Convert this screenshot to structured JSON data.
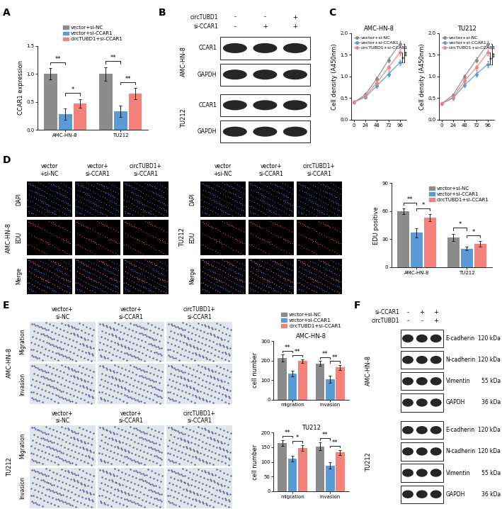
{
  "chart_data": [
    {
      "panel": "A",
      "type": "bar",
      "categories": [
        "AMC-HN-8",
        "TU212"
      ],
      "y_label": "CCAR1 expression",
      "ylim": [
        0,
        1.5
      ],
      "yticks": [
        {
          "value": 0,
          "label": "0.0"
        },
        0.5,
        1.0,
        1.5
      ],
      "legend": "upper center",
      "series": [
        {
          "name": "vector+si-NC",
          "color": "#8c8c8c",
          "values": [
            1.0,
            1.0
          ],
          "error": [
            0.1,
            0.12
          ]
        },
        {
          "name": "vector+si-CCAR1",
          "color": "#5b9bd5",
          "values": [
            0.28,
            0.33
          ],
          "error": [
            0.1,
            0.1
          ]
        },
        {
          "name": "circTUBD1+si-CCAR1",
          "color": "#f4817a",
          "values": [
            0.47,
            0.65
          ],
          "error": [
            0.08,
            0.1
          ]
        }
      ],
      "significance": [
        {
          "category": "AMC-HN-8",
          "between": [
            "vector+si-NC",
            "vector+si-CCAR1"
          ],
          "text": "**"
        },
        {
          "category": "AMC-HN-8",
          "between": [
            "vector+si-CCAR1",
            "circTUBD1+si-CCAR1"
          ],
          "text": "*"
        },
        {
          "category": "TU212",
          "between": [
            "vector+si-NC",
            "vector+si-CCAR1"
          ],
          "text": "**"
        },
        {
          "category": "TU212",
          "between": [
            "vector+si-CCAR1",
            "circTUBD1+si-CCAR1"
          ],
          "text": "**"
        }
      ]
    },
    {
      "panel": "C",
      "type": "line",
      "title": "AMC-HN-8",
      "y_label": "Cell density (A450nm)",
      "marker": "circle",
      "x": [
        0,
        24,
        48,
        72,
        96
      ],
      "xlim": [
        -5,
        110
      ],
      "xticks": [
        0,
        24,
        48,
        72,
        96
      ],
      "ylim": [
        0,
        2.0
      ],
      "yticks": [
        {
          "value": 0,
          "label": "0.0"
        },
        0.5,
        1.0,
        1.5,
        2.0
      ],
      "legend": "upper left",
      "series": [
        {
          "name": "vector+si-NC",
          "color": "#8c8c8c",
          "values": [
            0.4,
            0.58,
            0.95,
            1.38,
            1.75
          ],
          "error": [
            0.03,
            0.04,
            0.05,
            0.06,
            0.07
          ]
        },
        {
          "name": "vector+si-CCAR1",
          "color": "#5b9bd5",
          "values": [
            0.4,
            0.52,
            0.78,
            1.05,
            1.32
          ],
          "error": [
            0.03,
            0.04,
            0.05,
            0.06,
            0.07
          ]
        },
        {
          "name": "circTUBD1+si-CCAR1",
          "color": "#f4817a",
          "values": [
            0.4,
            0.55,
            0.85,
            1.2,
            1.55
          ],
          "error": [
            0.03,
            0.04,
            0.05,
            0.06,
            0.07
          ]
        }
      ],
      "significance": [
        {
          "between": [
            "vector+si-CCAR1",
            "circTUBD1+si-CCAR1"
          ],
          "text": "*"
        },
        {
          "between": [
            "vector+si-NC",
            "vector+si-CCAR1"
          ],
          "text": "**"
        }
      ]
    },
    {
      "type": "line",
      "title": "TU212",
      "y_label": "Cell density (A450nm)",
      "marker": "circle",
      "x": [
        0,
        24,
        48,
        72,
        96
      ],
      "xlim": [
        -5,
        110
      ],
      "xticks": [
        0,
        24,
        48,
        72,
        96
      ],
      "ylim": [
        0,
        2.0
      ],
      "yticks": [
        {
          "value": 0,
          "label": "0.0"
        },
        0.5,
        1.0,
        1.5,
        2.0
      ],
      "legend": "upper left",
      "series": [
        {
          "name": "vector+si-NC",
          "color": "#8c8c8c",
          "values": [
            0.37,
            0.57,
            1.0,
            1.38,
            1.75
          ],
          "error": [
            0.03,
            0.04,
            0.05,
            0.06,
            0.07
          ]
        },
        {
          "name": "vector+si-CCAR1",
          "color": "#5b9bd5",
          "values": [
            0.37,
            0.5,
            0.8,
            1.05,
            1.28
          ],
          "error": [
            0.03,
            0.04,
            0.05,
            0.06,
            0.07
          ]
        },
        {
          "name": "circTUBD1+si-CCAR1",
          "color": "#f4817a",
          "values": [
            0.37,
            0.52,
            0.9,
            1.2,
            1.55
          ],
          "error": [
            0.03,
            0.04,
            0.05,
            0.06,
            0.07
          ]
        }
      ],
      "significance": [
        {
          "between": [
            "vector+si-CCAR1",
            "circTUBD1+si-CCAR1"
          ],
          "text": "*"
        },
        {
          "between": [
            "vector+si-NC",
            "vector+si-CCAR1"
          ],
          "text": "**"
        }
      ]
    },
    {
      "panel": "D",
      "type": "bar",
      "categories": [
        "AMC-HN-8",
        "TU212"
      ],
      "y_label": "EDU positive",
      "ylim": [
        0,
        90
      ],
      "yticks": [
        0,
        30,
        60,
        90
      ],
      "legend": "upper right",
      "series": [
        {
          "name": "vector+si-NC",
          "color": "#8c8c8c",
          "values": [
            60,
            32
          ],
          "error": [
            3,
            4
          ]
        },
        {
          "name": "vector+si-CCAR1",
          "color": "#5b9bd5",
          "values": [
            37,
            20
          ],
          "error": [
            5,
            2
          ]
        },
        {
          "name": "circTUBD1+si-CCAR1",
          "color": "#f4817a",
          "values": [
            53,
            25
          ],
          "error": [
            4,
            3
          ]
        }
      ],
      "significance": [
        {
          "category": "AMC-HN-8",
          "between": [
            "vector+si-NC",
            "vector+si-CCAR1"
          ],
          "text": "**"
        },
        {
          "category": "AMC-HN-8",
          "between": [
            "vector+si-CCAR1",
            "circTUBD1+si-CCAR1"
          ],
          "text": "*"
        },
        {
          "category": "TU212",
          "between": [
            "vector+si-NC",
            "vector+si-CCAR1"
          ],
          "text": "*"
        },
        {
          "category": "TU212",
          "between": [
            "vector+si-CCAR1",
            "circTUBD1+si-CCAR1"
          ],
          "text": "*"
        }
      ]
    },
    {
      "panel": "E",
      "type": "bar",
      "title": "AMC-HN-8",
      "categories": [
        "migration",
        "invasion"
      ],
      "y_label": "cell number",
      "ylim": [
        0,
        300
      ],
      "yticks": [
        0,
        100,
        200,
        300
      ],
      "legend": "upper center",
      "series": [
        {
          "name": "vector+si-NC",
          "color": "#8c8c8c",
          "values": [
            212,
            185
          ],
          "error": [
            18,
            12
          ]
        },
        {
          "name": "vector+si-CCAR1",
          "color": "#5b9bd5",
          "values": [
            133,
            103
          ],
          "error": [
            15,
            18
          ]
        },
        {
          "name": "circTUBD1+si-CCAR1",
          "color": "#f4817a",
          "values": [
            197,
            165
          ],
          "error": [
            10,
            12
          ]
        }
      ],
      "significance": [
        {
          "category": "migration",
          "between": [
            "vector+si-NC",
            "vector+si-CCAR1"
          ],
          "text": "**"
        },
        {
          "category": "migration",
          "between": [
            "vector+si-CCAR1",
            "circTUBD1+si-CCAR1"
          ],
          "text": "**"
        },
        {
          "category": "invasion",
          "between": [
            "vector+si-NC",
            "vector+si-CCAR1"
          ],
          "text": "**"
        },
        {
          "category": "invasion",
          "between": [
            "vector+si-CCAR1",
            "circTUBD1+si-CCAR1"
          ],
          "text": "**"
        }
      ]
    },
    {
      "type": "bar",
      "title": "TU212",
      "categories": [
        "migration",
        "invasion"
      ],
      "y_label": "cell number",
      "ylim": [
        0,
        200
      ],
      "yticks": [
        0,
        50,
        100,
        150,
        200
      ],
      "series": [
        {
          "name": "vector+si-NC",
          "color": "#8c8c8c",
          "values": [
            165,
            153
          ],
          "error": [
            10,
            14
          ]
        },
        {
          "name": "vector+si-CCAR1",
          "color": "#5b9bd5",
          "values": [
            112,
            88
          ],
          "error": [
            10,
            10
          ]
        },
        {
          "name": "circTUBD1+si-CCAR1",
          "color": "#f4817a",
          "values": [
            147,
            132
          ],
          "error": [
            10,
            9
          ]
        }
      ],
      "significance": [
        {
          "category": "migration",
          "between": [
            "vector+si-NC",
            "vector+si-CCAR1"
          ],
          "text": "**"
        },
        {
          "category": "migration",
          "between": [
            "vector+si-CCAR1",
            "circTUBD1+si-CCAR1"
          ],
          "text": "*"
        },
        {
          "category": "invasion",
          "between": [
            "vector+si-NC",
            "vector+si-CCAR1"
          ],
          "text": "**"
        },
        {
          "category": "invasion",
          "between": [
            "vector+si-CCAR1",
            "circTUBD1+si-CCAR1"
          ],
          "text": "**"
        }
      ]
    }
  ],
  "blots": [
    {
      "panel": "B",
      "conditions": [
        {
          "name": "circTUBD1",
          "marks": [
            "-",
            "-",
            "+"
          ]
        },
        {
          "name": "si-CCAR1",
          "marks": [
            "-",
            "+",
            "+"
          ]
        }
      ],
      "cell_lines": [
        {
          "name": "AMC-HN-8",
          "bands": [
            {
              "name": "CCAR1"
            },
            {
              "name": "GAPDH"
            }
          ]
        },
        {
          "name": "TU212",
          "bands": [
            {
              "name": "CCAR1"
            },
            {
              "name": "GAPDH"
            }
          ]
        }
      ]
    },
    {
      "panel": "F",
      "conditions": [
        {
          "name": "si-CCAR1",
          "marks": [
            "-",
            "+",
            "+"
          ]
        },
        {
          "name": "circTUBD1",
          "marks": [
            "-",
            "-",
            "+"
          ]
        }
      ],
      "cell_lines": [
        {
          "name": "AMC-HN-8",
          "bands": [
            {
              "name": "E-cadherin",
              "size": "120 kDa"
            },
            {
              "name": "N-cadherin",
              "size": "120 kDa"
            },
            {
              "name": "Vimentin",
              "size": "55 kDa"
            },
            {
              "name": "GAPDH",
              "size": "36 kDa"
            }
          ]
        },
        {
          "name": "TU212",
          "bands": [
            {
              "name": "E-cadherin",
              "size": "120 kDa"
            },
            {
              "name": "N-cadherin",
              "size": "120 kDa"
            },
            {
              "name": "Vimentin",
              "size": "55 kDa"
            },
            {
              "name": "GAPDH",
              "size": "36 kDa"
            }
          ]
        }
      ]
    }
  ],
  "fluorescence_images": {
    "cell_lines": [
      "AMC-HN-8",
      "TU212"
    ],
    "columns": [
      "vector\n+si-NC",
      "vector+\nsi-CCAR1",
      "circTUBD1+\nsi-CCAR1"
    ],
    "rows": [
      "DAPI",
      "EDU",
      "Merge"
    ]
  },
  "transwell_images": {
    "cell_lines": [
      "AMC-HN-8",
      "TU212"
    ],
    "columns": [
      "vector+\nsi-NC",
      "vector+\nsi-CCAR1",
      "circTUBD1+\nsi-CCAR1"
    ],
    "rows": [
      "Migration",
      "Invasion"
    ]
  }
}
